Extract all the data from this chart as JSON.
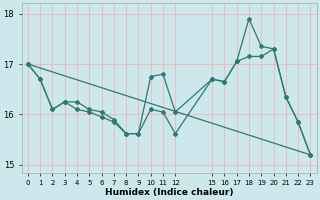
{
  "xlabel": "Humidex (Indice chaleur)",
  "background_color": "#cce8ec",
  "grid_color": "#ffffff",
  "line_color": "#2d7a70",
  "xlim": [
    -0.5,
    23.5
  ],
  "ylim": [
    14.85,
    18.2
  ],
  "yticks": [
    15,
    16,
    17,
    18
  ],
  "ytick_labels": [
    "15",
    "16",
    "17",
    "18"
  ],
  "xticks": [
    0,
    1,
    2,
    3,
    4,
    5,
    6,
    7,
    8,
    9,
    10,
    11,
    12,
    15,
    16,
    17,
    18,
    19,
    20,
    21,
    22,
    23
  ],
  "xtick_labels": [
    "0",
    "1",
    "2",
    "3",
    "4",
    "5",
    "6",
    "7",
    "8",
    "9",
    "10",
    "11",
    "12",
    "15",
    "16",
    "17",
    "18",
    "19",
    "20",
    "21",
    "22",
    "23"
  ],
  "line1_x": [
    0,
    1,
    2,
    3,
    4,
    5,
    6,
    7,
    8,
    9,
    10,
    11,
    12,
    15,
    16,
    17,
    18,
    19,
    20,
    21,
    22,
    23
  ],
  "line1_y": [
    17.0,
    16.7,
    16.1,
    16.25,
    16.25,
    16.1,
    16.05,
    15.9,
    15.62,
    15.62,
    16.75,
    16.8,
    16.05,
    16.7,
    16.65,
    17.05,
    17.9,
    17.35,
    17.3,
    16.35,
    15.85,
    15.2
  ],
  "line2_x": [
    0,
    1,
    2,
    3,
    4,
    5,
    6,
    7,
    8,
    9,
    10,
    11,
    12,
    15,
    16,
    17,
    18,
    19,
    20,
    21,
    22,
    23
  ],
  "line2_y": [
    17.0,
    16.7,
    16.1,
    16.25,
    16.1,
    16.05,
    15.95,
    15.85,
    15.62,
    15.62,
    16.1,
    16.05,
    15.62,
    16.7,
    16.65,
    17.05,
    17.15,
    17.15,
    17.3,
    16.35,
    15.85,
    15.2
  ],
  "line3_x": [
    0,
    23
  ],
  "line3_y": [
    17.0,
    15.2
  ]
}
